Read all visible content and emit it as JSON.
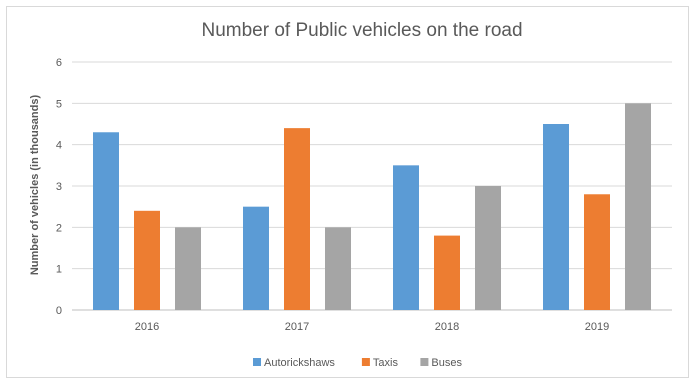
{
  "chart_data": {
    "type": "bar",
    "title": "Number of Public vehicles on the road",
    "xlabel": "",
    "ylabel": "Number of vehicles (in thousands)",
    "categories": [
      "2016",
      "2017",
      "2018",
      "2019"
    ],
    "series": [
      {
        "name": "Autorickshaws",
        "color": "#5b9bd5",
        "values": [
          4.3,
          2.5,
          3.5,
          4.5
        ]
      },
      {
        "name": "Taxis",
        "color": "#ed7d31",
        "values": [
          2.4,
          4.4,
          1.8,
          2.8
        ]
      },
      {
        "name": "Buses",
        "color": "#a5a5a5",
        "values": [
          2.0,
          2.0,
          3.0,
          5.0
        ]
      }
    ],
    "ylim": [
      0,
      6
    ],
    "yticks": [
      "0",
      "1",
      "2",
      "3",
      "4",
      "5",
      "6"
    ],
    "grid": true,
    "legend_position": "bottom"
  }
}
